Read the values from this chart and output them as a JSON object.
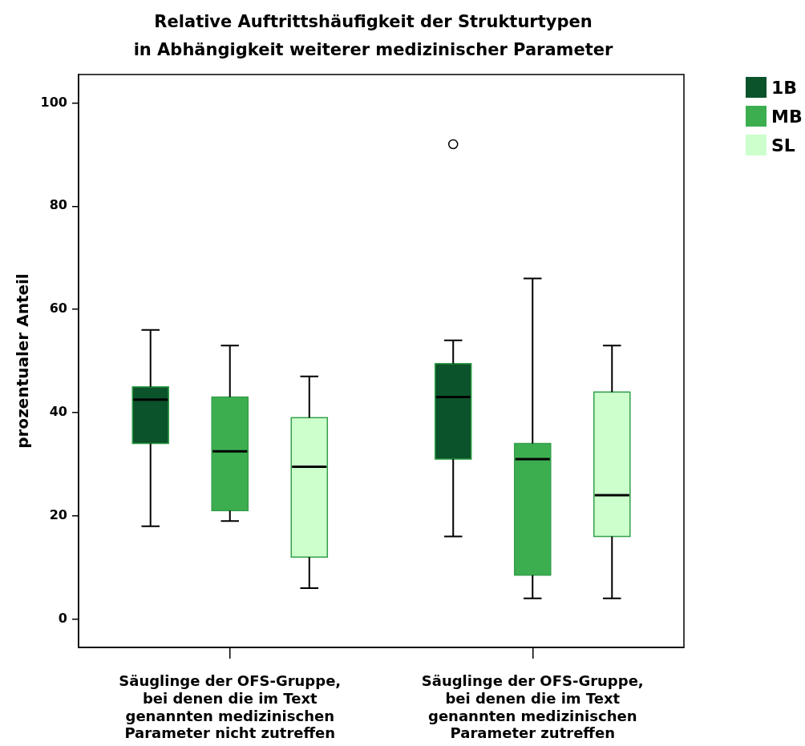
{
  "chart_data": {
    "type": "box",
    "title": "Relative Auftrittshäufigkeit der Strukturtypen\nin Abhängigkeit weiterer medizinischer Parameter",
    "ylabel": "prozentualer Anteil",
    "categories": [
      "Säuglinge der OFS-Gruppe,\nbei denen die im Text\ngenannten medizinischen\nParameter nicht zutreffen",
      "Säuglinge der OFS-Gruppe,\nbei denen die im Text\ngenannten medizinischen\nParameter zutreffen"
    ],
    "series": [
      {
        "name": "1B",
        "color": "#0b532b",
        "boxes": [
          {
            "low": 18,
            "q1": 34,
            "median": 42.5,
            "q3": 45,
            "high": 56
          },
          {
            "low": 16,
            "q1": 31,
            "median": 43,
            "q3": 49.5,
            "high": 54,
            "outliers": [
              92
            ]
          }
        ]
      },
      {
        "name": "MB",
        "color": "#3dae50",
        "boxes": [
          {
            "low": 19,
            "q1": 21,
            "median": 32.5,
            "q3": 43,
            "high": 53
          },
          {
            "low": 4,
            "q1": 8.5,
            "median": 31,
            "q3": 34,
            "high": 66
          }
        ]
      },
      {
        "name": "SL",
        "color": "#ccffcc",
        "boxes": [
          {
            "low": 6,
            "q1": 12,
            "median": 29.5,
            "q3": 39,
            "high": 47
          },
          {
            "low": 4,
            "q1": 16,
            "median": 24,
            "q3": 44,
            "high": 53
          }
        ]
      }
    ],
    "ylim": [
      -5.5,
      105.5
    ],
    "yticks": [
      0,
      20,
      40,
      60,
      80,
      100
    ],
    "grid": false,
    "legend": "top right"
  }
}
